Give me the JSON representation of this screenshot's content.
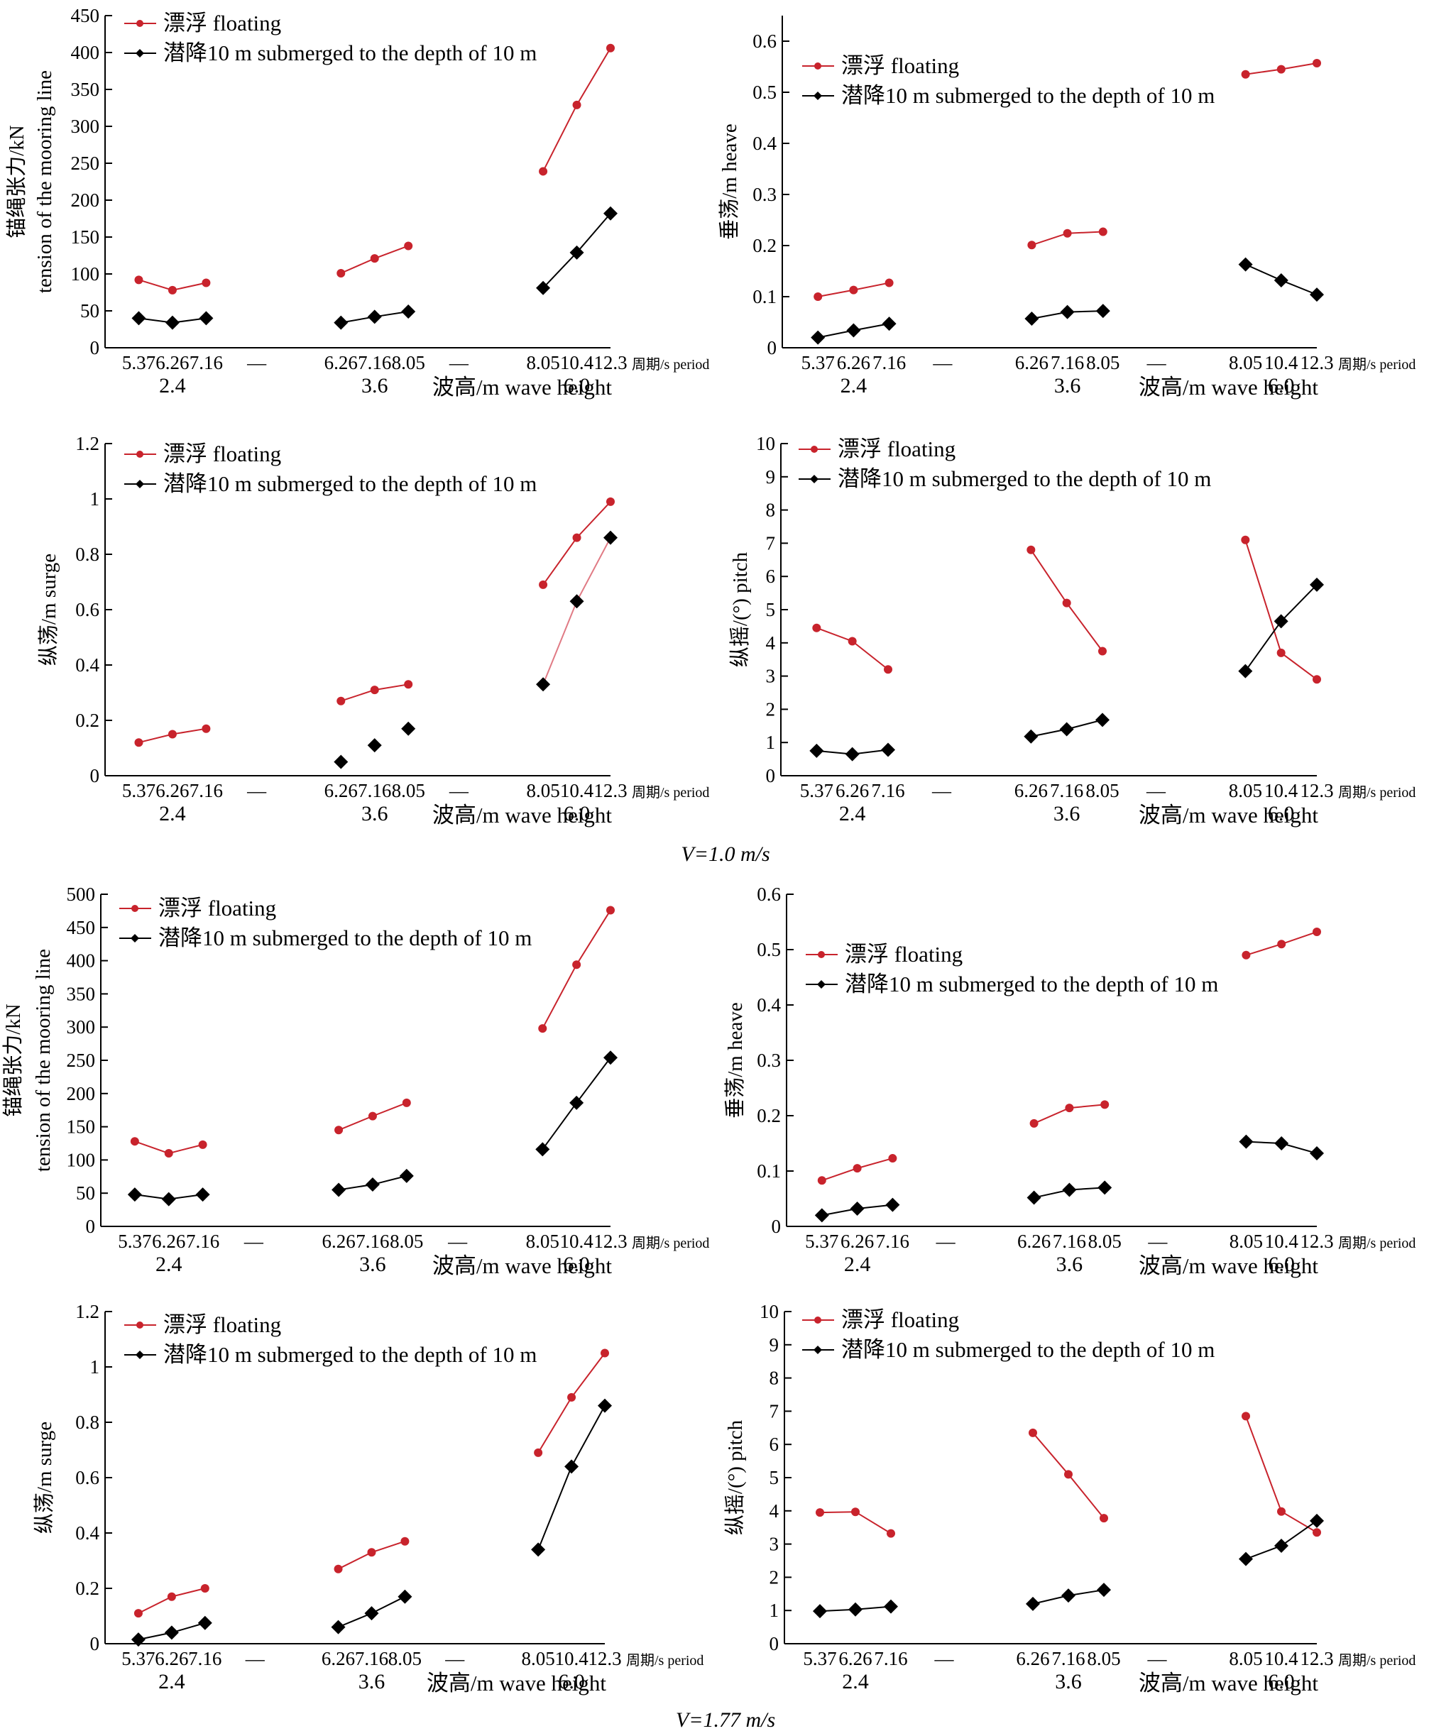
{
  "colors": {
    "floating": "#c8232c",
    "submerged": "#000000",
    "floating_link": "#e07a84",
    "axis": "#000000"
  },
  "captions": [
    "V=1.0 m/s",
    "V=1.77 m/s"
  ],
  "shared": {
    "wave_heights": [
      "2.4",
      "3.6",
      "6.0"
    ],
    "periods": [
      [
        "5.37",
        "6.26",
        "7.16"
      ],
      [
        "6.26",
        "7.16",
        "8.05"
      ],
      [
        "8.05",
        "10.4",
        "12.3"
      ]
    ],
    "separator": "—",
    "period_label": "周期/s period",
    "wave_label": "波高/m wave height",
    "legend_floating": "漂浮 floating",
    "legend_submerged": "潜降10 m submerged to the depth of 10 m"
  },
  "chart_data": [
    {
      "id": "tension-v1",
      "type": "line",
      "group": "V=1.0 m/s",
      "ylabel": "锚绳张力/kN tension of the mooring line",
      "ylim": [
        0,
        450
      ],
      "yticks": [
        0,
        50,
        100,
        150,
        200,
        250,
        300,
        350,
        400,
        450
      ],
      "series": [
        {
          "name": "漂浮 floating",
          "values": [
            [
              92,
              78,
              88
            ],
            [
              101,
              121,
              138
            ],
            [
              239,
              329,
              406
            ]
          ]
        },
        {
          "name": "潜降10 m submerged to the depth of 10 m",
          "values": [
            [
              40,
              34,
              40
            ],
            [
              34,
              42,
              49
            ],
            [
              81,
              129,
              182
            ]
          ]
        }
      ]
    },
    {
      "id": "heave-v1",
      "type": "line",
      "group": "V=1.0 m/s",
      "ylabel": "垂荡/m heave",
      "ylim": [
        0,
        0.65
      ],
      "yticks": [
        0,
        0.1,
        0.2,
        0.3,
        0.4,
        0.5,
        0.6
      ],
      "series": [
        {
          "name": "漂浮 floating",
          "values": [
            [
              0.1,
              0.113,
              0.127
            ],
            [
              0.201,
              0.224,
              0.227
            ],
            [
              0.535,
              0.545,
              0.557
            ]
          ]
        },
        {
          "name": "潜降10 m submerged to the depth of 10 m",
          "values": [
            [
              0.02,
              0.034,
              0.047
            ],
            [
              0.057,
              0.07,
              0.072
            ],
            [
              0.163,
              0.132,
              0.104
            ]
          ]
        }
      ]
    },
    {
      "id": "surge-v1",
      "type": "line",
      "group": "V=1.0 m/s",
      "ylabel": "纵荡/m surge",
      "ylim": [
        0,
        1.2
      ],
      "yticks": [
        0,
        0.2,
        0.4,
        0.6,
        0.8,
        1.0,
        1.2
      ],
      "series": [
        {
          "name": "漂浮 floating",
          "values": [
            [
              0.12,
              0.15,
              0.17
            ],
            [
              0.27,
              0.31,
              0.33
            ],
            [
              0.69,
              0.86,
              0.99
            ]
          ]
        },
        {
          "name": "潜降10 m submerged to the depth of 10 m",
          "values": [
            [
              null,
              null,
              null
            ],
            [
              0.05,
              0.11,
              0.17
            ],
            [
              0.33,
              0.63,
              0.86
            ]
          ]
        }
      ]
    },
    {
      "id": "pitch-v1",
      "type": "line",
      "group": "V=1.0 m/s",
      "ylabel": "纵摇/(°) pitch",
      "ylim": [
        0,
        10
      ],
      "yticks": [
        0,
        1,
        2,
        3,
        4,
        5,
        6,
        7,
        8,
        9,
        10
      ],
      "series": [
        {
          "name": "漂浮 floating",
          "values": [
            [
              4.45,
              4.05,
              3.2
            ],
            [
              6.8,
              5.2,
              3.75
            ],
            [
              7.1,
              3.7,
              2.9
            ]
          ]
        },
        {
          "name": "潜降10 m submerged to the depth of 10 m",
          "values": [
            [
              0.75,
              0.65,
              0.78
            ],
            [
              1.18,
              1.4,
              1.68
            ],
            [
              3.15,
              4.65,
              5.75
            ]
          ]
        }
      ]
    },
    {
      "id": "tension-v2",
      "type": "line",
      "group": "V=1.77 m/s",
      "ylabel": "锚绳张力/kN tension of the mooring line",
      "ylim": [
        0,
        500
      ],
      "yticks": [
        0,
        50,
        100,
        150,
        200,
        250,
        300,
        350,
        400,
        450,
        500
      ],
      "series": [
        {
          "name": "漂浮 floating",
          "values": [
            [
              128,
              110,
              123
            ],
            [
              145,
              166,
              186
            ],
            [
              298,
              394,
              476
            ]
          ]
        },
        {
          "name": "潜降10 m submerged to the depth of 10 m",
          "values": [
            [
              48,
              41,
              48
            ],
            [
              55,
              63,
              76
            ],
            [
              116,
              186,
              254
            ]
          ]
        }
      ]
    },
    {
      "id": "heave-v2",
      "type": "line",
      "group": "V=1.77 m/s",
      "ylabel": "垂荡/m heave",
      "ylim": [
        0,
        0.6
      ],
      "yticks": [
        0,
        0.1,
        0.2,
        0.3,
        0.4,
        0.5,
        0.6
      ],
      "series": [
        {
          "name": "漂浮 floating",
          "values": [
            [
              0.083,
              0.105,
              0.123
            ],
            [
              0.186,
              0.214,
              0.22
            ],
            [
              0.49,
              0.51,
              0.532
            ]
          ]
        },
        {
          "name": "潜降10 m submerged to the depth of 10 m",
          "values": [
            [
              0.02,
              0.032,
              0.039
            ],
            [
              0.052,
              0.066,
              0.07
            ],
            [
              0.153,
              0.15,
              0.132
            ]
          ]
        }
      ]
    },
    {
      "id": "surge-v2",
      "type": "line",
      "group": "V=1.77 m/s",
      "ylabel": "纵荡/m surge",
      "ylim": [
        0,
        1.2
      ],
      "yticks": [
        0,
        0.2,
        0.4,
        0.6,
        0.8,
        1.0,
        1.2
      ],
      "series": [
        {
          "name": "漂浮 floating",
          "values": [
            [
              0.11,
              0.17,
              0.2
            ],
            [
              0.27,
              0.33,
              0.37
            ],
            [
              0.69,
              0.89,
              1.05
            ]
          ]
        },
        {
          "name": "潜降10 m submerged to the depth of 10 m",
          "values": [
            [
              0.015,
              0.04,
              0.075
            ],
            [
              0.06,
              0.11,
              0.17
            ],
            [
              0.34,
              0.64,
              0.86
            ]
          ]
        }
      ]
    },
    {
      "id": "pitch-v2",
      "type": "line",
      "group": "V=1.77 m/s",
      "ylabel": "纵摇/(°) pitch",
      "ylim": [
        0,
        10
      ],
      "yticks": [
        0,
        1,
        2,
        3,
        4,
        5,
        6,
        7,
        8,
        9,
        10
      ],
      "series": [
        {
          "name": "漂浮 floating",
          "values": [
            [
              3.95,
              3.97,
              3.32
            ],
            [
              6.35,
              5.1,
              3.78
            ],
            [
              6.85,
              3.98,
              3.35
            ]
          ]
        },
        {
          "name": "潜降10 m submerged to the depth of 10 m",
          "values": [
            [
              0.98,
              1.03,
              1.12
            ],
            [
              1.2,
              1.45,
              1.62
            ],
            [
              2.55,
              2.95,
              3.7
            ]
          ]
        }
      ]
    }
  ]
}
